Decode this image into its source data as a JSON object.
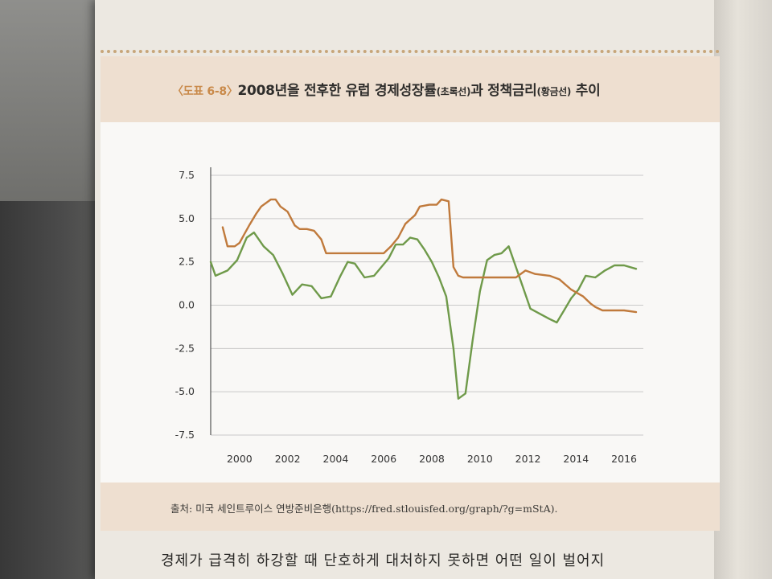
{
  "figure": {
    "tag": "〈도표 6-8〉",
    "title_main": "2008년을 전후한 유럽 경제성장률",
    "title_green_note": "(초록선)",
    "title_mid": "과 정책금리",
    "title_orange_note": "(황금선)",
    "title_end": " 추이"
  },
  "source_text": "출처: 미국 세인트루이스 연방준비은행(https://fred.stlouisfed.org/graph/?g=mStA).",
  "body_text": "경제가 급격히 하강할 때 단호하게 대처하지 못하면 어떤 일이 벌어지",
  "colors": {
    "growth": "#6f9a4a",
    "rate": "#c07a3c",
    "grid": "#c9c9c9",
    "axis": "#555555"
  },
  "chart_data": {
    "type": "line",
    "xlim": [
      1998.8,
      2016.8
    ],
    "ylim": [
      -7.5,
      7.5
    ],
    "yticks": [
      "7.5",
      "5.0",
      "2.5",
      "0.0",
      "-2.5",
      "-5.0",
      "-7.5"
    ],
    "ytick_values": [
      7.5,
      5.0,
      2.5,
      0.0,
      -2.5,
      -5.0,
      -7.5
    ],
    "xticks": [
      "2000",
      "2002",
      "2004",
      "2006",
      "2008",
      "2010",
      "2012",
      "2014",
      "2016"
    ],
    "xtick_values": [
      2000,
      2002,
      2004,
      2006,
      2008,
      2010,
      2012,
      2014,
      2016
    ],
    "grid": true,
    "series": [
      {
        "key": "growth",
        "x": [
          1998.8,
          1999.0,
          1999.5,
          1999.9,
          2000.3,
          2000.6,
          2001.0,
          2001.4,
          2001.8,
          2002.2,
          2002.6,
          2003.0,
          2003.4,
          2003.8,
          2004.2,
          2004.5,
          2004.8,
          2005.2,
          2005.6,
          2005.9,
          2006.2,
          2006.5,
          2006.8,
          2007.1,
          2007.4,
          2007.7,
          2008.0,
          2008.3,
          2008.6,
          2008.9,
          2009.1,
          2009.4,
          2009.7,
          2010.0,
          2010.3,
          2010.6,
          2010.9,
          2011.2,
          2011.5,
          2011.8,
          2012.1,
          2012.5,
          2012.9,
          2013.2,
          2013.5,
          2013.8,
          2014.1,
          2014.4,
          2014.8,
          2015.2,
          2015.6,
          2016.0,
          2016.5
        ],
        "y": [
          2.5,
          1.7,
          2.0,
          2.6,
          3.9,
          4.2,
          3.4,
          2.9,
          1.8,
          0.6,
          1.2,
          1.1,
          0.4,
          0.5,
          1.7,
          2.5,
          2.4,
          1.6,
          1.7,
          2.2,
          2.7,
          3.5,
          3.5,
          3.9,
          3.8,
          3.2,
          2.5,
          1.6,
          0.5,
          -2.5,
          -5.4,
          -5.1,
          -2.0,
          0.8,
          2.6,
          2.9,
          3.0,
          3.4,
          2.2,
          1.0,
          -0.2,
          -0.5,
          -0.8,
          -1.0,
          -0.3,
          0.4,
          0.9,
          1.7,
          1.6,
          2.0,
          2.3,
          2.3,
          2.1
        ]
      },
      {
        "key": "rate",
        "x": [
          1999.3,
          1999.5,
          1999.8,
          2000.0,
          2000.2,
          2000.4,
          2000.7,
          2000.9,
          2001.3,
          2001.5,
          2001.7,
          2002.0,
          2002.3,
          2002.5,
          2002.8,
          2003.1,
          2003.4,
          2003.6,
          2005.9,
          2006.0,
          2006.3,
          2006.6,
          2006.9,
          2007.3,
          2007.5,
          2007.9,
          2008.2,
          2008.4,
          2008.7,
          2008.9,
          2009.1,
          2009.3,
          2011.2,
          2011.5,
          2011.9,
          2012.3,
          2012.9,
          2013.3,
          2013.8,
          2014.3,
          2014.6,
          2014.8,
          2015.1,
          2016.0,
          2016.5
        ],
        "y": [
          4.5,
          3.4,
          3.4,
          3.6,
          4.1,
          4.6,
          5.3,
          5.7,
          6.1,
          6.1,
          5.7,
          5.4,
          4.6,
          4.4,
          4.4,
          4.3,
          3.8,
          3.0,
          3.0,
          3.0,
          3.4,
          3.9,
          4.7,
          5.2,
          5.7,
          5.8,
          5.8,
          6.1,
          6.0,
          2.2,
          1.7,
          1.6,
          1.6,
          1.6,
          2.0,
          1.8,
          1.7,
          1.5,
          0.9,
          0.5,
          0.1,
          -0.1,
          -0.3,
          -0.3,
          -0.4
        ]
      }
    ]
  }
}
